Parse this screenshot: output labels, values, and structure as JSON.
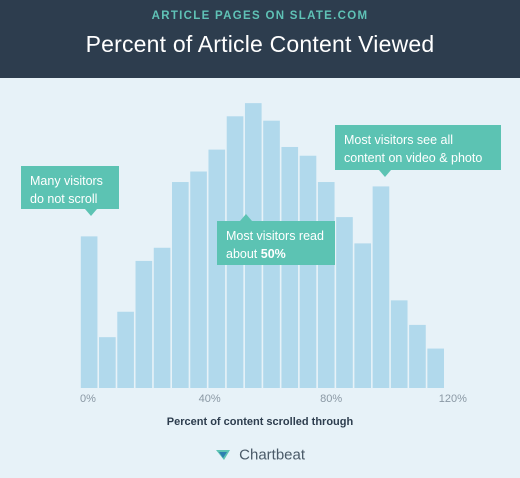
{
  "header": {
    "kicker": "ARTICLE PAGES ON SLATE.COM",
    "title": "Percent of Article Content Viewed"
  },
  "callouts": {
    "no_scroll_line1": "Many visitors",
    "no_scroll_line2": "do not scroll",
    "read_half_line1": "Most visitors read",
    "read_half_prefix": "about ",
    "read_half_value": "50%",
    "video_photo_line1": "Most visitors see all",
    "video_photo_line2": "content on video & photo"
  },
  "footer": {
    "brand": "Chartbeat"
  },
  "colors": {
    "header_bg": "#2d3d4e",
    "kicker": "#5fc2b6",
    "background": "#e7f2f8",
    "bar": "#b1d9ec",
    "callout": "#5cc3b3"
  },
  "chart_data": {
    "type": "bar",
    "title": "Percent of Article Content Viewed",
    "xlabel": "Percent of content scrolled through",
    "ylabel": "",
    "x_tick_labels": [
      "0%",
      "40%",
      "80%",
      "120%"
    ],
    "x_tick_values": [
      0,
      40,
      80,
      120
    ],
    "xlim": [
      0,
      125
    ],
    "categories": [
      0,
      6,
      12,
      18,
      24,
      30,
      36,
      42,
      48,
      54,
      60,
      66,
      72,
      78,
      84,
      90,
      96,
      102,
      108,
      114,
      120
    ],
    "values": [
      173,
      58,
      87,
      145,
      160,
      235,
      247,
      272,
      310,
      325,
      305,
      275,
      265,
      235,
      195,
      165,
      230,
      100,
      72,
      45,
      0
    ],
    "value_units": "relative share of visitors (unlabeled axis)",
    "ylim": [
      0,
      340
    ],
    "grid": false,
    "legend": "none"
  }
}
